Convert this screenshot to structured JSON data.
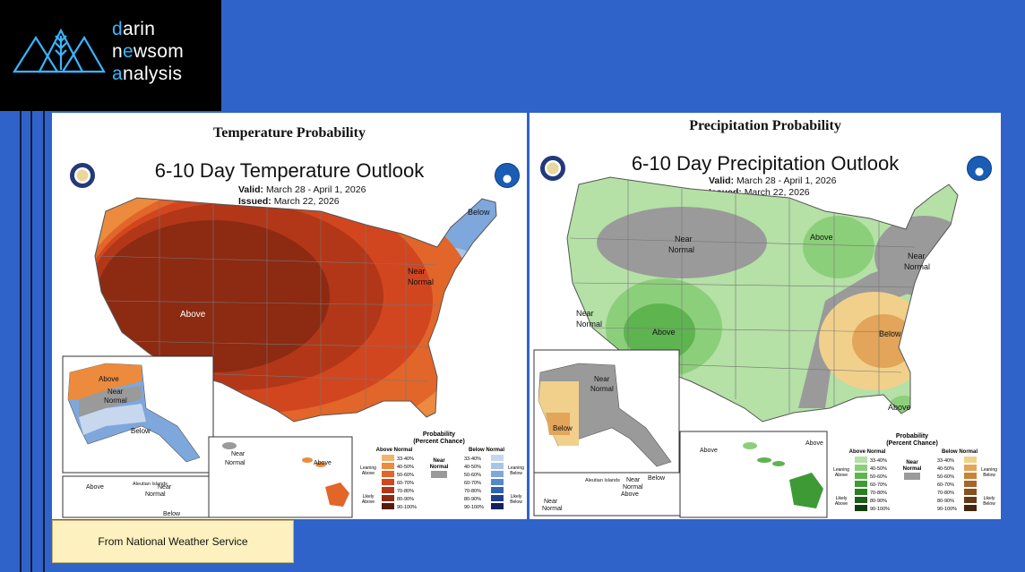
{
  "brand": {
    "line1_accent": "d",
    "line1_rest": "arin",
    "line2_pre": "n",
    "line2_accent": "e",
    "line2_mid": "ws",
    "line2_rest": "om",
    "line3_accent": "a",
    "line3_rest": "nalysis"
  },
  "source_note": "From National Weather Service",
  "temperature": {
    "panel_title": "Temperature Probability",
    "map_title": "6-10 Day Temperature Outlook",
    "valid_label": "Valid:",
    "valid_value": "March 28 - April 1, 2026",
    "issued_label": "Issued:",
    "issued_value": "March 22, 2026",
    "region_labels": [
      "Above",
      "Below",
      "Near",
      "Normal"
    ],
    "alaska_labels": [
      "Above",
      "Near",
      "Normal",
      "Below"
    ],
    "hawaii_labels": [
      "Near",
      "Normal",
      "Above"
    ],
    "aleutian_labels": [
      "Aleutian Islands",
      "Above",
      "Near",
      "Normal",
      "Below"
    ],
    "legend": {
      "title": "Probability",
      "subtitle": "(Percent Chance)",
      "above_header": "Above Normal",
      "near_header": "Near",
      "near_header2": "Normal",
      "below_header": "Below Normal",
      "leaning_above": [
        "Leaning",
        "Above"
      ],
      "likely_above": [
        "Likely",
        "Above"
      ],
      "leaning_below": [
        "Leaning",
        "Below"
      ],
      "likely_below": [
        "Likely",
        "Below"
      ],
      "bins": [
        "33-40%",
        "40-50%",
        "50-60%",
        "60-70%",
        "70-80%",
        "80-90%",
        "90-100%"
      ],
      "above_colors": [
        "#f2b26a",
        "#ec8a3e",
        "#e2652a",
        "#d2461f",
        "#b23718",
        "#8c2a12",
        "#5a1a0b"
      ],
      "below_colors": [
        "#c6d7ee",
        "#a8c4e8",
        "#7ea7dc",
        "#5388cc",
        "#2f62b3",
        "#1f3f8c",
        "#14205e"
      ],
      "near_color": "#9a9a9a"
    }
  },
  "precipitation": {
    "panel_title": "Precipitation Probability",
    "map_title": "6-10 Day Precipitation Outlook",
    "valid_label": "Valid:",
    "valid_value": "March 28 - April 1, 2026",
    "issued_label": "Issued:",
    "issued_value": "March 22, 2026",
    "region_labels": [
      "Near",
      "Normal",
      "Above",
      "Above",
      "Near",
      "Normal",
      "Near",
      "Normal",
      "Below",
      "Above"
    ],
    "alaska_labels": [
      "Near",
      "Normal",
      "Below"
    ],
    "hawaii_labels": [
      "Above",
      "Above"
    ],
    "aleutian_labels": [
      "Aleutian Islands",
      "Near",
      "Normal",
      "Below",
      "Above",
      "Near",
      "Normal"
    ],
    "legend": {
      "title": "Probability",
      "subtitle": "(Percent Chance)",
      "above_header": "Above Normal",
      "near_header": "Near",
      "near_header2": "Normal",
      "below_header": "Below Normal",
      "leaning_above": [
        "Leaning",
        "Above"
      ],
      "likely_above": [
        "Likely",
        "Above"
      ],
      "leaning_below": [
        "Leaning",
        "Below"
      ],
      "likely_below": [
        "Likely",
        "Below"
      ],
      "bins": [
        "33-40%",
        "40-50%",
        "50-60%",
        "60-70%",
        "70-80%",
        "80-90%",
        "90-100%"
      ],
      "above_colors": [
        "#b5e0a6",
        "#8ccf7a",
        "#5eb44f",
        "#3e9a35",
        "#2a7d24",
        "#1c5e19",
        "#103d10"
      ],
      "below_colors": [
        "#f1d08b",
        "#e2a55a",
        "#c98338",
        "#a8652a",
        "#86501f",
        "#633c17",
        "#42270f"
      ],
      "near_color": "#9a9a9a"
    }
  },
  "colors": {
    "background": "#2f63c9",
    "brand_accent": "#38b6ff"
  }
}
